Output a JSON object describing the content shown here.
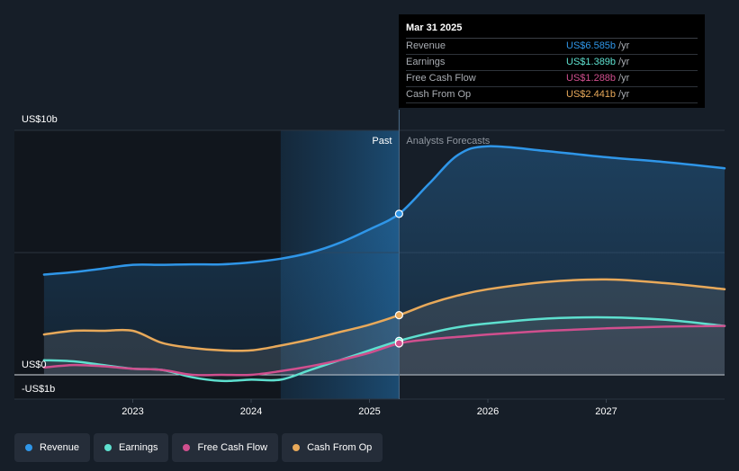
{
  "chart_data": {
    "type": "line",
    "x": [
      2022.25,
      2022.5,
      2022.75,
      2023.0,
      2023.25,
      2023.5,
      2023.75,
      2024.0,
      2024.25,
      2024.5,
      2024.75,
      2025.0,
      2025.25,
      2025.5,
      2025.75,
      2026.0,
      2026.25,
      2026.5,
      2026.75,
      2027.0,
      2027.25,
      2027.5,
      2027.75,
      2028.0
    ],
    "series": [
      {
        "name": "Revenue",
        "color": "#2f96e8",
        "points": [
          [
            2022.25,
            4.1
          ],
          [
            2022.5,
            4.2
          ],
          [
            2022.75,
            4.35
          ],
          [
            2023.0,
            4.5
          ],
          [
            2023.25,
            4.5
          ],
          [
            2023.5,
            4.52
          ],
          [
            2023.75,
            4.52
          ],
          [
            2024.0,
            4.6
          ],
          [
            2024.25,
            4.75
          ],
          [
            2024.5,
            5.0
          ],
          [
            2024.75,
            5.4
          ],
          [
            2025.0,
            5.95
          ],
          [
            2025.25,
            6.585
          ],
          [
            2025.5,
            7.8
          ],
          [
            2025.75,
            9.0
          ],
          [
            2026.0,
            9.35
          ],
          [
            2026.5,
            9.15
          ],
          [
            2027.0,
            8.9
          ],
          [
            2027.5,
            8.7
          ],
          [
            2028.0,
            8.45
          ]
        ]
      },
      {
        "name": "Earnings",
        "color": "#5ee0cf",
        "points": [
          [
            2022.25,
            0.6
          ],
          [
            2022.5,
            0.55
          ],
          [
            2022.75,
            0.4
          ],
          [
            2023.0,
            0.25
          ],
          [
            2023.25,
            0.2
          ],
          [
            2023.5,
            -0.1
          ],
          [
            2023.75,
            -0.25
          ],
          [
            2024.0,
            -0.2
          ],
          [
            2024.25,
            -0.2
          ],
          [
            2024.5,
            0.2
          ],
          [
            2024.75,
            0.6
          ],
          [
            2025.0,
            1.0
          ],
          [
            2025.25,
            1.389
          ],
          [
            2025.5,
            1.7
          ],
          [
            2025.75,
            1.95
          ],
          [
            2026.0,
            2.1
          ],
          [
            2026.5,
            2.3
          ],
          [
            2027.0,
            2.35
          ],
          [
            2027.5,
            2.25
          ],
          [
            2028.0,
            2.0
          ]
        ]
      },
      {
        "name": "Free Cash Flow",
        "color": "#d04f8e",
        "points": [
          [
            2022.25,
            0.3
          ],
          [
            2022.5,
            0.4
          ],
          [
            2022.75,
            0.35
          ],
          [
            2023.0,
            0.25
          ],
          [
            2023.25,
            0.2
          ],
          [
            2023.5,
            0.0
          ],
          [
            2023.75,
            0.0
          ],
          [
            2024.0,
            0.0
          ],
          [
            2024.25,
            0.15
          ],
          [
            2024.5,
            0.35
          ],
          [
            2024.75,
            0.6
          ],
          [
            2025.0,
            0.9
          ],
          [
            2025.25,
            1.288
          ],
          [
            2025.5,
            1.45
          ],
          [
            2025.75,
            1.55
          ],
          [
            2026.0,
            1.65
          ],
          [
            2026.5,
            1.8
          ],
          [
            2027.0,
            1.9
          ],
          [
            2027.5,
            1.97
          ],
          [
            2028.0,
            2.0
          ]
        ]
      },
      {
        "name": "Cash From Op",
        "color": "#e8a95a",
        "points": [
          [
            2022.25,
            1.65
          ],
          [
            2022.5,
            1.8
          ],
          [
            2022.75,
            1.8
          ],
          [
            2023.0,
            1.8
          ],
          [
            2023.25,
            1.3
          ],
          [
            2023.5,
            1.1
          ],
          [
            2023.75,
            1.0
          ],
          [
            2024.0,
            1.0
          ],
          [
            2024.25,
            1.2
          ],
          [
            2024.5,
            1.45
          ],
          [
            2024.75,
            1.75
          ],
          [
            2025.0,
            2.05
          ],
          [
            2025.25,
            2.441
          ],
          [
            2025.5,
            2.9
          ],
          [
            2025.75,
            3.25
          ],
          [
            2026.0,
            3.5
          ],
          [
            2026.5,
            3.8
          ],
          [
            2027.0,
            3.9
          ],
          [
            2027.5,
            3.75
          ],
          [
            2028.0,
            3.5
          ]
        ]
      }
    ],
    "yticks": [
      {
        "value": 10,
        "label": "US$10b"
      },
      {
        "value": 0,
        "label": "US$0"
      },
      {
        "value": -1,
        "label": "-US$1b"
      }
    ],
    "xticks": [
      {
        "value": 2023,
        "label": "2023"
      },
      {
        "value": 2024,
        "label": "2024"
      },
      {
        "value": 2025,
        "label": "2025"
      },
      {
        "value": 2026,
        "label": "2026"
      },
      {
        "value": 2027,
        "label": "2027"
      }
    ],
    "xlim": [
      2022.0,
      2028.0
    ],
    "ylim": [
      -1,
      10
    ],
    "divider_x": 2025.25,
    "highlight_start_x": 2024.25,
    "past_label": "Past",
    "forecast_label": "Analysts Forecasts",
    "grid": true,
    "legend_position": "bottom-left"
  },
  "tooltip": {
    "date": "Mar 31 2025",
    "unit": "/yr",
    "rows": [
      {
        "label": "Revenue",
        "value": "US$6.585b",
        "color": "#2f96e8"
      },
      {
        "label": "Earnings",
        "value": "US$1.389b",
        "color": "#5ee0cf"
      },
      {
        "label": "Free Cash Flow",
        "value": "US$1.288b",
        "color": "#d04f8e"
      },
      {
        "label": "Cash From Op",
        "value": "US$2.441b",
        "color": "#e8a95a"
      }
    ]
  },
  "legend": [
    {
      "label": "Revenue",
      "color": "#2f96e8"
    },
    {
      "label": "Earnings",
      "color": "#5ee0cf"
    },
    {
      "label": "Free Cash Flow",
      "color": "#d04f8e"
    },
    {
      "label": "Cash From Op",
      "color": "#e8a95a"
    }
  ]
}
